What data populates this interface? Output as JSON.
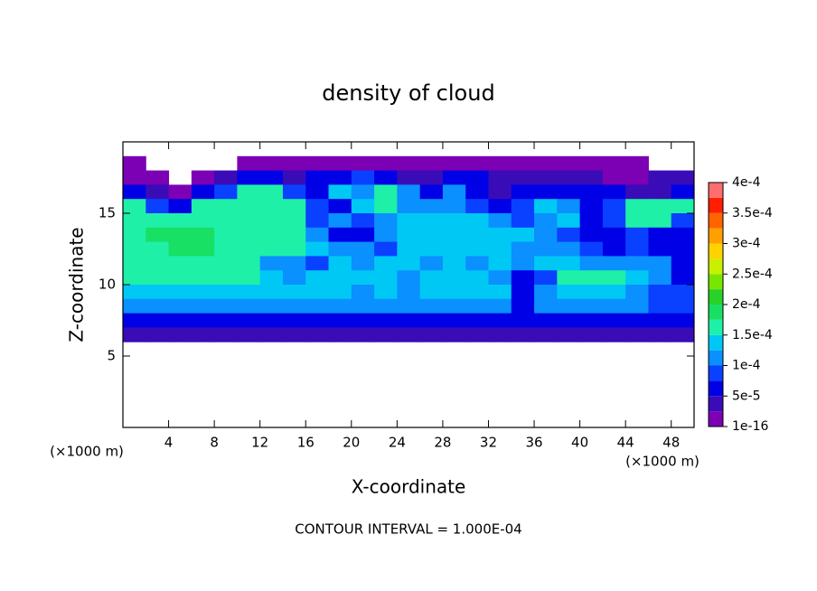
{
  "chart_data": {
    "type": "contour",
    "title": "density of cloud",
    "x_label": "X-coordinate",
    "y_label": "Z-coordinate",
    "x_unit": "(×1000 m)",
    "y_unit": "(×1000 m)",
    "footnote": "CONTOUR INTERVAL = 1.000E-04",
    "xlim": [
      0,
      50
    ],
    "ylim": [
      0,
      20
    ],
    "xticks": [
      4,
      8,
      12,
      16,
      20,
      24,
      28,
      32,
      36,
      40,
      44,
      48
    ],
    "yticks": [
      5,
      10,
      15
    ],
    "x": [
      1,
      3,
      5,
      7,
      9,
      11,
      13,
      15,
      17,
      19,
      21,
      23,
      25,
      27,
      29,
      31,
      33,
      35,
      37,
      39,
      41,
      43,
      45,
      47,
      49
    ],
    "y": [
      18.5,
      17.5,
      16.5,
      15.5,
      14.5,
      13.5,
      12.5,
      11.5,
      10.5,
      9.5,
      8.5,
      7.5,
      6.5
    ],
    "z": [
      [
        1e-05,
        null,
        null,
        null,
        null,
        1e-05,
        1e-05,
        1e-05,
        1e-05,
        1e-05,
        1e-05,
        1e-05,
        1e-05,
        1e-05,
        1e-05,
        1e-05,
        1e-05,
        1e-05,
        1e-05,
        1e-05,
        1e-05,
        1e-05,
        1e-05,
        null,
        null
      ],
      [
        1e-05,
        1e-05,
        null,
        1e-05,
        3.5e-05,
        6e-05,
        6e-05,
        3.5e-05,
        6e-05,
        6e-05,
        8.5e-05,
        6e-05,
        3.5e-05,
        3.5e-05,
        6e-05,
        6e-05,
        3.5e-05,
        3.5e-05,
        3.5e-05,
        3.5e-05,
        3.5e-05,
        1e-05,
        1e-05,
        3.5e-05,
        3.5e-05
      ],
      [
        6e-05,
        3.5e-05,
        1e-05,
        6e-05,
        8.5e-05,
        0.00016,
        0.00016,
        8.5e-05,
        6e-05,
        0.000135,
        0.00011,
        0.00016,
        0.00011,
        6e-05,
        0.00011,
        6e-05,
        3.5e-05,
        6e-05,
        6e-05,
        6e-05,
        6e-05,
        6e-05,
        3.5e-05,
        3.5e-05,
        6e-05
      ],
      [
        0.00016,
        8.5e-05,
        6e-05,
        0.00016,
        0.00016,
        0.00016,
        0.00016,
        0.00016,
        8.5e-05,
        6e-05,
        0.000135,
        0.00016,
        0.00011,
        0.00011,
        0.00011,
        8.5e-05,
        6e-05,
        8.5e-05,
        0.000135,
        0.00011,
        6e-05,
        8.5e-05,
        0.00016,
        0.00016,
        0.00016
      ],
      [
        0.00016,
        0.00016,
        0.00016,
        0.00016,
        0.00016,
        0.00016,
        0.00016,
        0.00016,
        8.5e-05,
        0.00011,
        8.5e-05,
        0.00011,
        0.000135,
        0.000135,
        0.000135,
        0.000135,
        0.00011,
        8.5e-05,
        0.00011,
        0.000135,
        6e-05,
        8.5e-05,
        0.00016,
        0.00016,
        8.5e-05
      ],
      [
        0.00016,
        0.000185,
        0.000185,
        0.000185,
        0.00016,
        0.00016,
        0.00016,
        0.00016,
        0.00011,
        6e-05,
        6e-05,
        0.00011,
        0.000135,
        0.000135,
        0.000135,
        0.000135,
        0.000135,
        0.000135,
        0.00011,
        8.5e-05,
        6e-05,
        6e-05,
        8.5e-05,
        6e-05,
        6e-05
      ],
      [
        0.00016,
        0.00016,
        0.000185,
        0.000185,
        0.00016,
        0.00016,
        0.00016,
        0.00016,
        0.000135,
        0.00011,
        0.00011,
        8.5e-05,
        0.000135,
        0.000135,
        0.000135,
        0.000135,
        0.000135,
        0.00011,
        0.00011,
        0.00011,
        8.5e-05,
        6e-05,
        8.5e-05,
        6e-05,
        6e-05
      ],
      [
        0.00016,
        0.00016,
        0.00016,
        0.00016,
        0.00016,
        0.00016,
        0.00011,
        0.00011,
        8.5e-05,
        0.000135,
        0.00011,
        0.000135,
        0.000135,
        0.00011,
        0.000135,
        0.00011,
        0.000135,
        0.00011,
        0.000135,
        0.000135,
        0.00011,
        0.00011,
        0.00011,
        0.00011,
        6e-05
      ],
      [
        0.00016,
        0.00016,
        0.00016,
        0.00016,
        0.00016,
        0.00016,
        0.000135,
        0.00011,
        0.000135,
        0.000135,
        0.000135,
        0.000135,
        0.00011,
        0.000135,
        0.000135,
        0.000135,
        0.00011,
        6e-05,
        8.5e-05,
        0.00016,
        0.00016,
        0.00016,
        0.000135,
        0.00011,
        6e-05
      ],
      [
        0.000135,
        0.000135,
        0.000135,
        0.000135,
        0.000135,
        0.000135,
        0.000135,
        0.000135,
        0.000135,
        0.000135,
        0.00011,
        0.000135,
        0.00011,
        0.000135,
        0.000135,
        0.000135,
        0.000135,
        6e-05,
        0.00011,
        0.000135,
        0.000135,
        0.000135,
        0.00011,
        8.5e-05,
        8.5e-05
      ],
      [
        0.00011,
        0.00011,
        0.00011,
        0.00011,
        0.00011,
        0.00011,
        0.00011,
        0.00011,
        0.00011,
        0.00011,
        0.00011,
        0.00011,
        0.00011,
        0.00011,
        0.00011,
        0.00011,
        0.00011,
        6e-05,
        0.00011,
        0.00011,
        0.00011,
        0.00011,
        0.00011,
        8.5e-05,
        8.5e-05
      ],
      [
        6e-05,
        6e-05,
        6e-05,
        6e-05,
        6e-05,
        6e-05,
        6e-05,
        6e-05,
        6e-05,
        6e-05,
        6e-05,
        6e-05,
        6e-05,
        6e-05,
        6e-05,
        6e-05,
        6e-05,
        6e-05,
        6e-05,
        6e-05,
        6e-05,
        6e-05,
        6e-05,
        6e-05,
        6e-05
      ],
      [
        3.5e-05,
        3.5e-05,
        3.5e-05,
        3.5e-05,
        3.5e-05,
        3.5e-05,
        3.5e-05,
        3.5e-05,
        3.5e-05,
        3.5e-05,
        3.5e-05,
        3.5e-05,
        3.5e-05,
        3.5e-05,
        3.5e-05,
        3.5e-05,
        3.5e-05,
        3.5e-05,
        3.5e-05,
        3.5e-05,
        3.5e-05,
        3.5e-05,
        3.5e-05,
        3.5e-05,
        3.5e-05
      ]
    ],
    "levels": [
      1e-16,
      2.5e-05,
      5e-05,
      7.5e-05,
      0.0001,
      0.000125,
      0.00015,
      0.000175,
      0.0002,
      0.000225,
      0.00025,
      0.000275,
      0.0003,
      0.000325,
      0.00035,
      0.000375,
      0.0004
    ],
    "colors": [
      "#7c00b4",
      "#3a0cb8",
      "#0000e6",
      "#0a40ff",
      "#0a90ff",
      "#00c8f5",
      "#1ef0a8",
      "#18e064",
      "#28d228",
      "#78e600",
      "#c8f000",
      "#ffd200",
      "#ffa000",
      "#ff6400",
      "#ff1e00",
      "#ff6e6e"
    ],
    "colorbar_ticks": [
      {
        "value": 1e-16,
        "label": "1e-16"
      },
      {
        "value": 5e-05,
        "label": "5e-5"
      },
      {
        "value": 0.0001,
        "label": "1e-4"
      },
      {
        "value": 0.00015,
        "label": "1.5e-4"
      },
      {
        "value": 0.0002,
        "label": "2e-4"
      },
      {
        "value": 0.00025,
        "label": "2.5e-4"
      },
      {
        "value": 0.0003,
        "label": "3e-4"
      },
      {
        "value": 0.00035,
        "label": "3.5e-4"
      },
      {
        "value": 0.0004,
        "label": "4e-4"
      }
    ]
  }
}
